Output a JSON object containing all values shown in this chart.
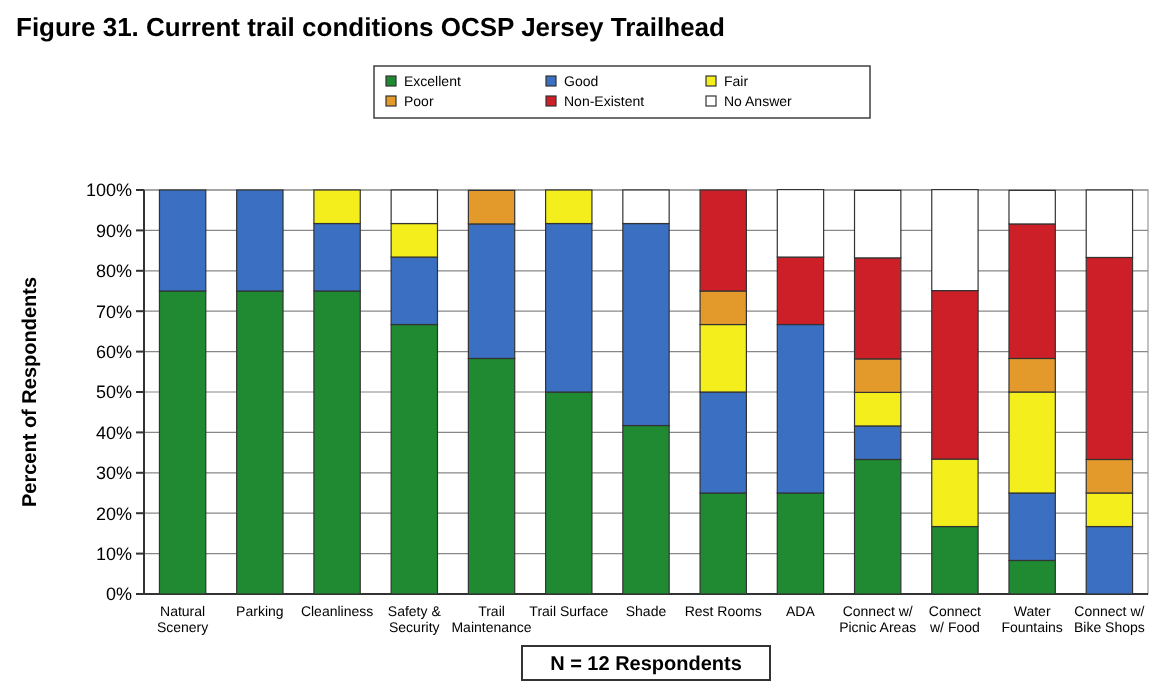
{
  "chart_data": {
    "type": "bar",
    "stacked": true,
    "title": "Figure 31.  Current trail conditions OCSP Jersey Trailhead",
    "ylabel": "Percent of Respondents",
    "categories": [
      "Natural Scenery",
      "Parking",
      "Cleanliness",
      "Safety & Security",
      "Trail Maintenance",
      "Trail Surface",
      "Shade",
      "Rest Rooms",
      "ADA",
      "Connect w/ Picnic Areas",
      "Connect w/ Food",
      "Water Fountains",
      "Connect w/ Bike Shops"
    ],
    "series": [
      {
        "name": "Excellent",
        "color": "#1f8a32",
        "values": [
          75,
          75,
          75,
          66.7,
          58.3,
          50,
          41.7,
          25,
          25,
          33.3,
          16.7,
          8.3,
          0
        ]
      },
      {
        "name": "Good",
        "color": "#3b6fc2",
        "values": [
          25,
          25,
          16.7,
          16.7,
          33.3,
          41.7,
          50,
          25,
          41.7,
          8.3,
          0,
          16.7,
          16.7
        ]
      },
      {
        "name": "Fair",
        "color": "#f4ef1c",
        "values": [
          0,
          0,
          8.3,
          8.3,
          0,
          8.3,
          0,
          16.7,
          0,
          8.3,
          16.7,
          25,
          8.3
        ]
      },
      {
        "name": "Poor",
        "color": "#e39a2b",
        "values": [
          0,
          0,
          0,
          0,
          8.3,
          0,
          0,
          8.3,
          0,
          8.3,
          0,
          8.3,
          8.3
        ]
      },
      {
        "name": "Non-Existent",
        "color": "#cc1f27",
        "values": [
          0,
          0,
          0,
          0,
          0,
          0,
          0,
          25,
          16.7,
          25,
          41.7,
          33.3,
          50
        ]
      },
      {
        "name": "No Answer",
        "color": "#ffffff",
        "values": [
          0,
          0,
          0,
          8.3,
          0,
          0,
          8.3,
          0,
          16.7,
          16.7,
          25,
          8.3,
          16.7
        ]
      }
    ],
    "ylim": [
      0,
      100
    ],
    "yticks": [
      {
        "value": 0,
        "label": "0%"
      },
      {
        "value": 10,
        "label": "10%"
      },
      {
        "value": 20,
        "label": "20%"
      },
      {
        "value": 30,
        "label": "30%"
      },
      {
        "value": 40,
        "label": "40%"
      },
      {
        "value": 50,
        "label": "50%"
      },
      {
        "value": 60,
        "label": "60%"
      },
      {
        "value": 70,
        "label": "70%"
      },
      {
        "value": 80,
        "label": "80%"
      },
      {
        "value": 90,
        "label": "90%"
      },
      {
        "value": 100,
        "label": "100%"
      }
    ],
    "grid": "y",
    "legend": "top",
    "annotations": [
      "N = 12 Respondents"
    ]
  }
}
